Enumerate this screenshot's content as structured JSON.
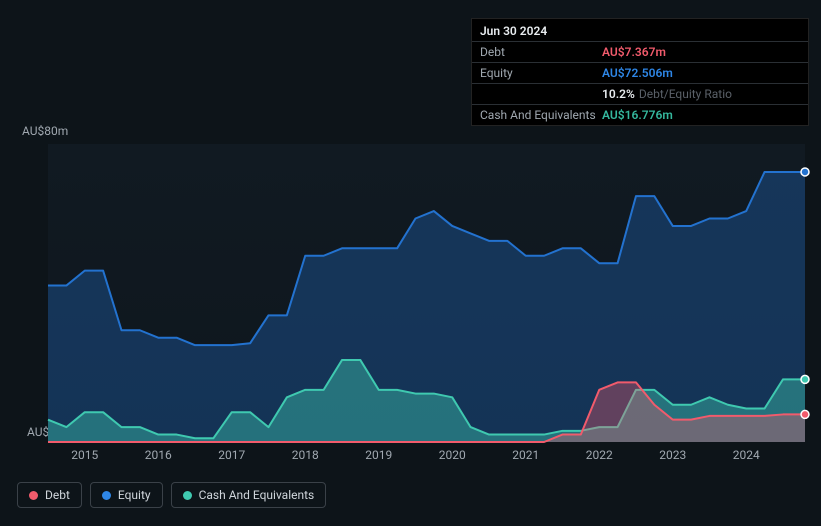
{
  "chart": {
    "type": "area",
    "background_color": "#0d1419",
    "plot_background": "#111a22",
    "ylim": [
      0,
      80
    ],
    "y_ticks": [
      {
        "value": 80,
        "label": "AU$80m"
      },
      {
        "value": 0,
        "label": "AU$0"
      }
    ],
    "x_years": [
      2015,
      2016,
      2017,
      2018,
      2019,
      2020,
      2021,
      2022,
      2023,
      2024
    ],
    "x_range": [
      2014.5,
      2024.8
    ],
    "axis_color": "#a0a8b0",
    "axis_fontsize": 12,
    "series": [
      {
        "id": "equity",
        "name": "Equity",
        "color": "#2372cf",
        "fill": "rgba(35,114,207,0.32)",
        "end_dot": true,
        "points": [
          [
            2014.5,
            42
          ],
          [
            2014.75,
            42
          ],
          [
            2015.0,
            46
          ],
          [
            2015.25,
            46
          ],
          [
            2015.5,
            30
          ],
          [
            2015.75,
            30
          ],
          [
            2016.0,
            28
          ],
          [
            2016.25,
            28
          ],
          [
            2016.5,
            26
          ],
          [
            2016.75,
            26
          ],
          [
            2017.0,
            26
          ],
          [
            2017.25,
            26.5
          ],
          [
            2017.5,
            34
          ],
          [
            2017.75,
            34
          ],
          [
            2018.0,
            50
          ],
          [
            2018.25,
            50
          ],
          [
            2018.5,
            52
          ],
          [
            2018.75,
            52
          ],
          [
            2019.0,
            52
          ],
          [
            2019.25,
            52
          ],
          [
            2019.5,
            60
          ],
          [
            2019.75,
            62
          ],
          [
            2020.0,
            58
          ],
          [
            2020.25,
            56
          ],
          [
            2020.5,
            54
          ],
          [
            2020.75,
            54
          ],
          [
            2021.0,
            50
          ],
          [
            2021.25,
            50
          ],
          [
            2021.5,
            52
          ],
          [
            2021.75,
            52
          ],
          [
            2022.0,
            48
          ],
          [
            2022.25,
            48
          ],
          [
            2022.5,
            66
          ],
          [
            2022.75,
            66
          ],
          [
            2023.0,
            58
          ],
          [
            2023.25,
            58
          ],
          [
            2023.5,
            60
          ],
          [
            2023.75,
            60
          ],
          [
            2024.0,
            62
          ],
          [
            2024.25,
            72.5
          ],
          [
            2024.5,
            72.5
          ],
          [
            2024.8,
            72.5
          ]
        ]
      },
      {
        "id": "cash",
        "name": "Cash And Equivalents",
        "color": "#3fc9b0",
        "fill": "rgba(63,201,176,0.42)",
        "end_dot": true,
        "points": [
          [
            2014.5,
            6
          ],
          [
            2014.75,
            4
          ],
          [
            2015.0,
            8
          ],
          [
            2015.25,
            8
          ],
          [
            2015.5,
            4
          ],
          [
            2015.75,
            4
          ],
          [
            2016.0,
            2
          ],
          [
            2016.25,
            2
          ],
          [
            2016.5,
            1
          ],
          [
            2016.75,
            1
          ],
          [
            2017.0,
            8
          ],
          [
            2017.25,
            8
          ],
          [
            2017.5,
            4
          ],
          [
            2017.75,
            12
          ],
          [
            2018.0,
            14
          ],
          [
            2018.25,
            14
          ],
          [
            2018.5,
            22
          ],
          [
            2018.75,
            22
          ],
          [
            2019.0,
            14
          ],
          [
            2019.25,
            14
          ],
          [
            2019.5,
            13
          ],
          [
            2019.75,
            13
          ],
          [
            2020.0,
            12
          ],
          [
            2020.25,
            4
          ],
          [
            2020.5,
            2
          ],
          [
            2020.75,
            2
          ],
          [
            2021.0,
            2
          ],
          [
            2021.25,
            2
          ],
          [
            2021.5,
            3
          ],
          [
            2021.75,
            3
          ],
          [
            2022.0,
            4
          ],
          [
            2022.25,
            4
          ],
          [
            2022.5,
            14
          ],
          [
            2022.75,
            14
          ],
          [
            2023.0,
            10
          ],
          [
            2023.25,
            10
          ],
          [
            2023.5,
            12
          ],
          [
            2023.75,
            10
          ],
          [
            2024.0,
            9
          ],
          [
            2024.25,
            9
          ],
          [
            2024.5,
            16.8
          ],
          [
            2024.8,
            16.8
          ]
        ]
      },
      {
        "id": "debt",
        "name": "Debt",
        "color": "#f15b6c",
        "fill": "rgba(241,91,108,0.35)",
        "end_dot": true,
        "points": [
          [
            2014.5,
            0
          ],
          [
            2021.25,
            0
          ],
          [
            2021.5,
            2
          ],
          [
            2021.75,
            2
          ],
          [
            2022.0,
            14
          ],
          [
            2022.25,
            16
          ],
          [
            2022.5,
            16
          ],
          [
            2022.75,
            10
          ],
          [
            2023.0,
            6
          ],
          [
            2023.25,
            6
          ],
          [
            2023.5,
            7
          ],
          [
            2023.75,
            7
          ],
          [
            2024.0,
            7
          ],
          [
            2024.25,
            7
          ],
          [
            2024.5,
            7.4
          ],
          [
            2024.8,
            7.4
          ]
        ]
      }
    ]
  },
  "tooltip": {
    "date": "Jun 30 2024",
    "rows": [
      {
        "label": "Debt",
        "value": "AU$7.367m",
        "color": "#f15b6c"
      },
      {
        "label": "Equity",
        "value": "AU$72.506m",
        "color": "#2e86e6"
      },
      {
        "label": "",
        "value": "10.2%",
        "suffix": "Debt/Equity Ratio",
        "color": "#e8ecef"
      },
      {
        "label": "Cash And Equivalents",
        "value": "AU$16.776m",
        "color": "#35b89e"
      }
    ]
  },
  "legend": {
    "items": [
      {
        "id": "debt",
        "label": "Debt",
        "color": "#f15b6c"
      },
      {
        "id": "equity",
        "label": "Equity",
        "color": "#2e86e6"
      },
      {
        "id": "cash",
        "label": "Cash And Equivalents",
        "color": "#3fc9b0"
      }
    ]
  }
}
